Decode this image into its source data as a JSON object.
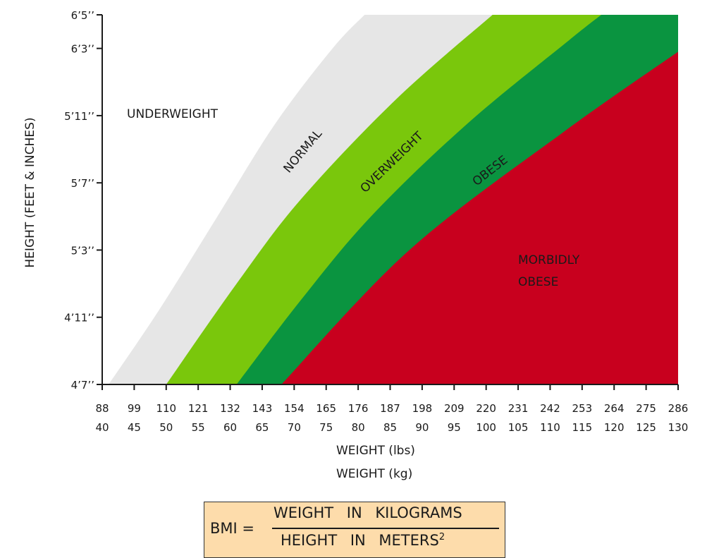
{
  "chart_data": {
    "type": "area",
    "xlabel_lbs": "WEIGHT (lbs)",
    "xlabel_kg": "WEIGHT (kg)",
    "ylabel": "HEIGHT (FEET & INCHES)",
    "x_ticks_lbs": [
      "88",
      "99",
      "110",
      "121",
      "132",
      "143",
      "154",
      "165",
      "176",
      "187",
      "198",
      "209",
      "220",
      "231",
      "242",
      "253",
      "264",
      "275",
      "286"
    ],
    "x_ticks_kg": [
      "40",
      "45",
      "50",
      "55",
      "60",
      "65",
      "70",
      "75",
      "80",
      "85",
      "90",
      "95",
      "100",
      "105",
      "110",
      "115",
      "120",
      "125",
      "130"
    ],
    "y_ticks": [
      {
        "label": "4’7’’",
        "inches": 55
      },
      {
        "label": "4’11’’",
        "inches": 59
      },
      {
        "label": "5’3’’",
        "inches": 63
      },
      {
        "label": "5’7’’",
        "inches": 67
      },
      {
        "label": "5’11’’",
        "inches": 71
      },
      {
        "label": "6’3’’",
        "inches": 75
      },
      {
        "label": "6’5’’",
        "inches": 77
      }
    ],
    "xlim_kg": [
      40,
      130
    ],
    "ylim_inches": [
      55,
      77
    ],
    "zones": [
      {
        "name": "UNDERWEIGHT",
        "color": "#ffffff"
      },
      {
        "name": "NORMAL",
        "color": "#e6e6e6",
        "lower_boundary": [
          [
            41,
            55
          ],
          [
            49,
            59.5
          ],
          [
            58,
            65
          ],
          [
            67,
            70.5
          ],
          [
            76,
            75
          ],
          [
            81,
            77
          ]
        ]
      },
      {
        "name": "OVERWEIGHT",
        "color": "#7ac70c",
        "lower_boundary": [
          [
            50,
            55
          ],
          [
            61,
            61
          ],
          [
            71,
            66
          ],
          [
            86,
            72
          ],
          [
            101,
            77
          ]
        ]
      },
      {
        "name": "OBESE",
        "color": "#0a9440",
        "lower_boundary": [
          [
            61,
            55
          ],
          [
            71,
            60
          ],
          [
            82,
            65
          ],
          [
            97,
            70.5
          ],
          [
            113,
            75.5
          ],
          [
            118,
            77
          ]
        ]
      },
      {
        "name": "MORBIDLY OBESE",
        "color": "#c8001e",
        "lower_boundary": [
          [
            68,
            55
          ],
          [
            88,
            63
          ],
          [
            112,
            70
          ],
          [
            130,
            74.8
          ]
        ]
      }
    ]
  },
  "zone_labels": {
    "underweight": "UNDERWEIGHT",
    "normal": "NORMAL",
    "overweight": "OVERWEIGHT",
    "obese": "OBESE",
    "morbidly_line1": "MORBIDLY",
    "morbidly_line2": "OBESE"
  },
  "formula": {
    "lhs": "BMI =",
    "numerator": "WEIGHT IN KILOGRAMS",
    "denominator": "HEIGHT IN METERS",
    "exponent": "2"
  }
}
